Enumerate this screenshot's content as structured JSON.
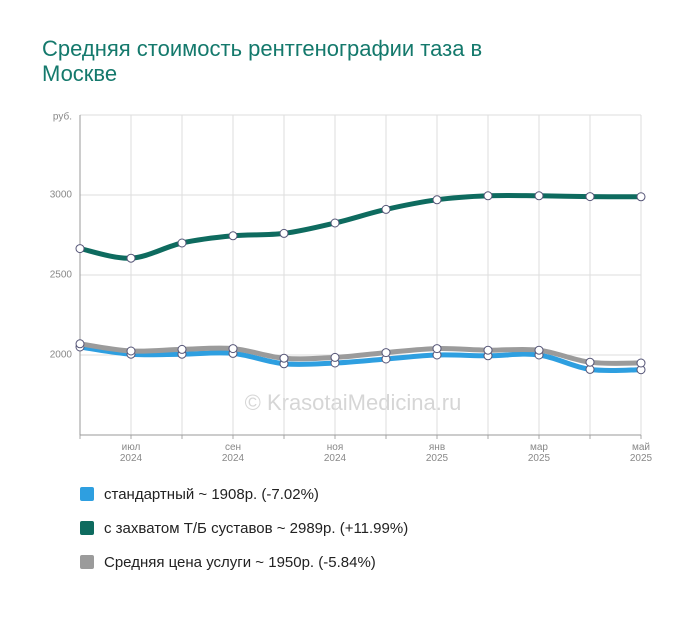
{
  "chart_data": {
    "type": "line",
    "title": "Средняя стоимость рентгенографии таза в Москве",
    "watermark": "© KrasotaiMedicina.ru",
    "categories": [
      null,
      "июл 2024",
      null,
      "сен 2024",
      null,
      "ноя 2024",
      null,
      "янв 2025",
      null,
      "мар 2025",
      null,
      "май 2025"
    ],
    "series": [
      {
        "name": "стандартный ~ 1908р. (-7.02%)",
        "color": "#2e9fe0",
        "values": [
          2050,
          2005,
          2005,
          2010,
          1945,
          1950,
          1975,
          2000,
          1995,
          2000,
          1910,
          1908
        ]
      },
      {
        "name": "с захватом Т/Б суставов ~ 2989р. (+11.99%)",
        "color": "#0e6b5f",
        "values": [
          2665,
          2605,
          2700,
          2745,
          2760,
          2825,
          2910,
          2970,
          2995,
          2995,
          2990,
          2989
        ]
      },
      {
        "name": "Средняя цена услуги ~ 1950р. (-5.84%)",
        "color": "#9b9b9b",
        "values": [
          2070,
          2025,
          2035,
          2040,
          1980,
          1985,
          2015,
          2040,
          2030,
          2030,
          1955,
          1950
        ]
      }
    ],
    "ylim": [
      1500,
      3500
    ],
    "yticks": [
      2000,
      2500,
      3000,
      {
        "value": 3500,
        "label": "руб."
      }
    ],
    "grid": true
  }
}
